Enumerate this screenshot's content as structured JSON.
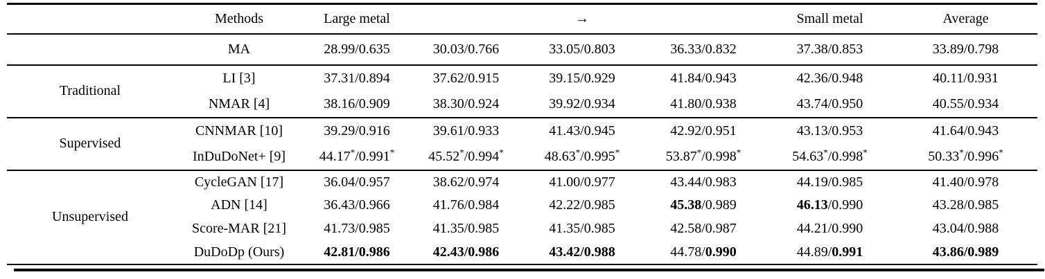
{
  "page": {
    "background_color": "#ffffff",
    "text_color": "#000000",
    "arrow_glyph": "→"
  },
  "table": {
    "headers": {
      "group": "",
      "methods": "Methods",
      "cols": [
        "Large metal",
        "",
        "→",
        "",
        "Small metal",
        "Average"
      ]
    },
    "sections": [
      {
        "group": "",
        "rows": [
          {
            "method": "MA",
            "cells": [
              {
                "p": "28.99",
                "s": "0.635"
              },
              {
                "p": "30.03",
                "s": "0.766"
              },
              {
                "p": "33.05",
                "s": "0.803"
              },
              {
                "p": "36.33",
                "s": "0.832"
              },
              {
                "p": "37.38",
                "s": "0.853"
              },
              {
                "p": "33.89",
                "s": "0.798"
              }
            ]
          }
        ]
      },
      {
        "group": "Traditional",
        "rows": [
          {
            "method": "LI [3]",
            "cells": [
              {
                "p": "37.31",
                "s": "0.894"
              },
              {
                "p": "37.62",
                "s": "0.915"
              },
              {
                "p": "39.15",
                "s": "0.929"
              },
              {
                "p": "41.84",
                "s": "0.943"
              },
              {
                "p": "42.36",
                "s": "0.948"
              },
              {
                "p": "40.11",
                "s": "0.931"
              }
            ]
          },
          {
            "method": "NMAR [4]",
            "cells": [
              {
                "p": "38.16",
                "s": "0.909"
              },
              {
                "p": "38.30",
                "s": "0.924"
              },
              {
                "p": "39.92",
                "s": "0.934"
              },
              {
                "p": "41.80",
                "s": "0.938"
              },
              {
                "p": "43.74",
                "s": "0.950"
              },
              {
                "p": "40.55",
                "s": "0.934"
              }
            ]
          }
        ]
      },
      {
        "group": "Supervised",
        "rows": [
          {
            "method": "CNNMAR [10]",
            "cells": [
              {
                "p": "39.29",
                "s": "0.916"
              },
              {
                "p": "39.61",
                "s": "0.933"
              },
              {
                "p": "41.43",
                "s": "0.945"
              },
              {
                "p": "42.92",
                "s": "0.951"
              },
              {
                "p": "43.13",
                "s": "0.953"
              },
              {
                "p": "41.64",
                "s": "0.943"
              }
            ]
          },
          {
            "method": "InDuDoNet+ [9]",
            "cells": [
              {
                "p": "44.17",
                "s": "0.991",
                "star": true
              },
              {
                "p": "45.52",
                "s": "0.994",
                "star": true
              },
              {
                "p": "48.63",
                "s": "0.995",
                "star": true
              },
              {
                "p": "53.87",
                "s": "0.998",
                "star": true
              },
              {
                "p": "54.63",
                "s": "0.998",
                "star": true
              },
              {
                "p": "50.33",
                "s": "0.996",
                "star": true
              }
            ]
          }
        ]
      },
      {
        "group": "Unsupervised",
        "rows": [
          {
            "method": "CycleGAN [17]",
            "cells": [
              {
                "p": "36.04",
                "s": "0.957"
              },
              {
                "p": "38.62",
                "s": "0.974"
              },
              {
                "p": "41.00",
                "s": "0.977"
              },
              {
                "p": "43.44",
                "s": "0.983"
              },
              {
                "p": "44.19",
                "s": "0.985"
              },
              {
                "p": "41.40",
                "s": "0.978"
              }
            ]
          },
          {
            "method": "ADN [14]",
            "cells": [
              {
                "p": "36.43",
                "s": "0.966"
              },
              {
                "p": "41.76",
                "s": "0.984"
              },
              {
                "p": "42.22",
                "s": "0.985"
              },
              {
                "p": "45.38",
                "s": "0.989",
                "bp": true
              },
              {
                "p": "46.13",
                "s": "0.990",
                "bp": true
              },
              {
                "p": "43.28",
                "s": "0.985"
              }
            ]
          },
          {
            "method": "Score-MAR [21]",
            "cells": [
              {
                "p": "41.73",
                "s": "0.985"
              },
              {
                "p": "41.35",
                "s": "0.985"
              },
              {
                "p": "41.35",
                "s": "0.985"
              },
              {
                "p": "42.58",
                "s": "0.987"
              },
              {
                "p": "44.21",
                "s": "0.990"
              },
              {
                "p": "43.04",
                "s": "0.988"
              }
            ]
          },
          {
            "method": "DuDoDp (Ours)",
            "cells": [
              {
                "p": "42.81",
                "s": "0.986",
                "bp": true,
                "bs": true
              },
              {
                "p": "42.43",
                "s": "0.986",
                "bp": true,
                "bs": true
              },
              {
                "p": "43.42",
                "s": "0.988",
                "bp": true,
                "bs": true
              },
              {
                "p": "44.78",
                "s": "0.990",
                "bs": true
              },
              {
                "p": "44.89",
                "s": "0.991",
                "bs": true
              },
              {
                "p": "43.86",
                "s": "0.989",
                "bp": true,
                "bs": true
              }
            ]
          }
        ]
      }
    ]
  }
}
